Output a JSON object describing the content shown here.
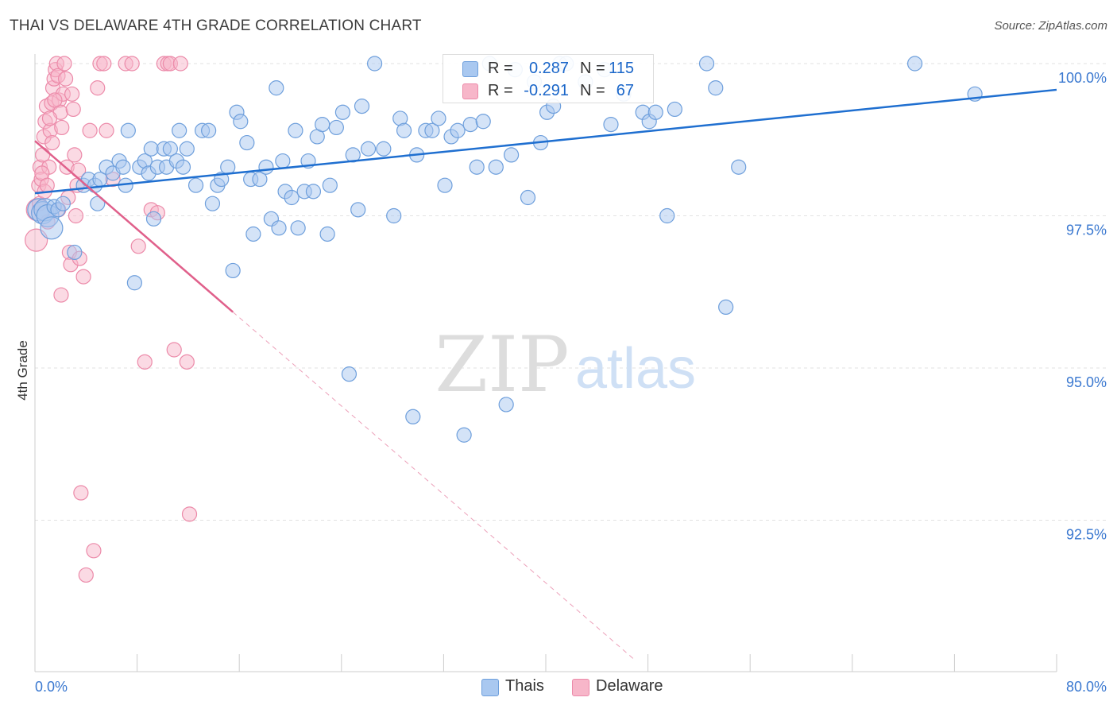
{
  "header": {
    "title": "THAI VS DELAWARE 4TH GRADE CORRELATION CHART",
    "source": "Source: ZipAtlas.com"
  },
  "watermark": {
    "zip": "ZIP",
    "atlas": "atlas"
  },
  "legend": {
    "rows": [
      {
        "r_label": "R =",
        "r_value": "0.287",
        "n_label": "N =",
        "n_value": "115"
      },
      {
        "r_label": "R =",
        "r_value": "-0.291",
        "n_label": "N =",
        "n_value": "67"
      }
    ],
    "bottom": [
      {
        "label": "Thais"
      },
      {
        "label": "Delaware"
      }
    ]
  },
  "colors": {
    "thais_fill": "#a9c8f0",
    "thais_stroke": "#6e9fdc",
    "thais_line": "#1f6fd0",
    "delaware_fill": "#f7b6c9",
    "delaware_stroke": "#ec8aa9",
    "delaware_line": "#e0608b",
    "axis_label": "#3a78d0"
  },
  "chart_data": {
    "type": "scatter",
    "title": "THAI VS DELAWARE 4TH GRADE CORRELATION CHART",
    "xlabel": "",
    "ylabel": "4th Grade",
    "xlim": [
      0,
      80
    ],
    "ylim": [
      90.2,
      100.6
    ],
    "x_tick_labels": {
      "left": "0.0%",
      "right": "80.0%"
    },
    "y_ticks": [
      {
        "value": 100.0,
        "label": "100.0%"
      },
      {
        "value": 97.5,
        "label": "97.5%"
      },
      {
        "value": 95.0,
        "label": "95.0%"
      },
      {
        "value": 92.5,
        "label": "92.5%"
      }
    ],
    "grid": true,
    "series": [
      {
        "name": "Thais",
        "R": 0.287,
        "N": 115,
        "trend": {
          "x": [
            0,
            80
          ],
          "y": [
            97.87,
            99.57
          ],
          "style": "solid"
        },
        "points": [
          [
            0.3,
            97.6
          ],
          [
            0.6,
            97.55
          ],
          [
            0.8,
            97.6
          ],
          [
            1.0,
            97.5
          ],
          [
            1.3,
            97.3
          ],
          [
            1.5,
            97.65
          ],
          [
            1.8,
            97.6
          ],
          [
            2.2,
            97.7
          ],
          [
            3.1,
            96.9
          ],
          [
            3.8,
            98.0
          ],
          [
            4.2,
            98.1
          ],
          [
            4.7,
            98.0
          ],
          [
            4.9,
            97.7
          ],
          [
            5.1,
            98.1
          ],
          [
            5.6,
            98.3
          ],
          [
            6.1,
            98.2
          ],
          [
            6.6,
            98.4
          ],
          [
            6.9,
            98.3
          ],
          [
            7.1,
            98.0
          ],
          [
            7.3,
            98.9
          ],
          [
            7.8,
            96.4
          ],
          [
            8.2,
            98.3
          ],
          [
            8.6,
            98.4
          ],
          [
            8.9,
            98.2
          ],
          [
            9.1,
            98.6
          ],
          [
            9.3,
            97.45
          ],
          [
            9.6,
            98.3
          ],
          [
            10.1,
            98.6
          ],
          [
            10.3,
            98.3
          ],
          [
            10.6,
            98.6
          ],
          [
            11.1,
            98.4
          ],
          [
            11.3,
            98.9
          ],
          [
            11.6,
            98.3
          ],
          [
            11.9,
            98.6
          ],
          [
            12.6,
            98.0
          ],
          [
            13.1,
            98.9
          ],
          [
            13.6,
            98.9
          ],
          [
            13.9,
            97.7
          ],
          [
            14.3,
            98.0
          ],
          [
            14.6,
            98.1
          ],
          [
            15.1,
            98.3
          ],
          [
            15.5,
            96.6
          ],
          [
            15.8,
            99.2
          ],
          [
            16.1,
            99.05
          ],
          [
            16.6,
            98.7
          ],
          [
            16.9,
            98.1
          ],
          [
            17.1,
            97.2
          ],
          [
            17.6,
            98.1
          ],
          [
            18.1,
            98.3
          ],
          [
            18.5,
            97.45
          ],
          [
            18.9,
            99.6
          ],
          [
            19.1,
            97.3
          ],
          [
            19.4,
            98.4
          ],
          [
            19.6,
            97.9
          ],
          [
            20.1,
            97.8
          ],
          [
            20.4,
            98.9
          ],
          [
            20.6,
            97.3
          ],
          [
            21.1,
            97.9
          ],
          [
            21.4,
            98.4
          ],
          [
            21.8,
            97.9
          ],
          [
            22.1,
            98.8
          ],
          [
            22.5,
            99.0
          ],
          [
            22.9,
            97.2
          ],
          [
            23.1,
            98.0
          ],
          [
            23.6,
            98.95
          ],
          [
            24.1,
            99.2
          ],
          [
            24.6,
            94.9
          ],
          [
            24.9,
            98.5
          ],
          [
            25.3,
            97.6
          ],
          [
            25.6,
            99.3
          ],
          [
            26.1,
            98.6
          ],
          [
            26.6,
            100.0
          ],
          [
            27.3,
            98.6
          ],
          [
            28.1,
            97.5
          ],
          [
            28.6,
            99.1
          ],
          [
            28.9,
            98.9
          ],
          [
            29.6,
            94.2
          ],
          [
            29.9,
            98.5
          ],
          [
            30.6,
            98.9
          ],
          [
            31.1,
            98.9
          ],
          [
            31.6,
            99.1
          ],
          [
            32.1,
            98.0
          ],
          [
            32.6,
            98.8
          ],
          [
            33.1,
            98.9
          ],
          [
            33.6,
            93.9
          ],
          [
            34.1,
            99.0
          ],
          [
            34.6,
            98.3
          ],
          [
            35.1,
            99.05
          ],
          [
            35.6,
            100.0
          ],
          [
            36.1,
            98.3
          ],
          [
            36.9,
            94.4
          ],
          [
            37.3,
            98.5
          ],
          [
            37.6,
            99.9
          ],
          [
            38.6,
            97.8
          ],
          [
            39.1,
            99.7
          ],
          [
            39.6,
            98.7
          ],
          [
            40.1,
            99.2
          ],
          [
            40.6,
            99.3
          ],
          [
            41.1,
            100.0
          ],
          [
            41.6,
            100.0
          ],
          [
            43.1,
            99.7
          ],
          [
            44.6,
            99.9
          ],
          [
            45.1,
            99.0
          ],
          [
            46.1,
            99.5
          ],
          [
            47.6,
            99.2
          ],
          [
            48.1,
            99.05
          ],
          [
            48.6,
            99.2
          ],
          [
            49.5,
            97.5
          ],
          [
            50.1,
            99.25
          ],
          [
            52.6,
            100.0
          ],
          [
            54.1,
            96.0
          ],
          [
            55.1,
            98.3
          ],
          [
            68.9,
            100.0
          ],
          [
            73.6,
            99.5
          ],
          [
            53.3,
            99.6
          ]
        ]
      },
      {
        "name": "Delaware",
        "R": -0.291,
        "N": 67,
        "trend": {
          "x": [
            0,
            15.5
          ],
          "y": [
            98.73,
            95.92
          ],
          "style": "solid"
        },
        "trend_extension": {
          "x": [
            15.5,
            47.0
          ],
          "y": [
            95.92,
            90.2
          ],
          "style": "dashed"
        },
        "points": [
          [
            0.1,
            97.1
          ],
          [
            0.2,
            97.6
          ],
          [
            0.3,
            98.0
          ],
          [
            0.4,
            98.3
          ],
          [
            0.5,
            98.1
          ],
          [
            0.6,
            98.5
          ],
          [
            0.7,
            98.8
          ],
          [
            0.8,
            99.05
          ],
          [
            0.9,
            99.3
          ],
          [
            1.0,
            97.4
          ],
          [
            1.1,
            98.3
          ],
          [
            1.2,
            98.9
          ],
          [
            1.3,
            99.35
          ],
          [
            1.4,
            99.6
          ],
          [
            1.5,
            99.75
          ],
          [
            1.6,
            99.9
          ],
          [
            1.7,
            100.0
          ],
          [
            1.8,
            99.8
          ],
          [
            1.9,
            99.4
          ],
          [
            2.0,
            99.2
          ],
          [
            2.1,
            98.95
          ],
          [
            2.2,
            99.5
          ],
          [
            2.3,
            100.0
          ],
          [
            2.4,
            99.75
          ],
          [
            2.5,
            98.3
          ],
          [
            2.6,
            97.8
          ],
          [
            2.7,
            96.9
          ],
          [
            2.8,
            96.7
          ],
          [
            2.9,
            99.5
          ],
          [
            3.0,
            99.25
          ],
          [
            3.1,
            98.5
          ],
          [
            3.2,
            97.5
          ],
          [
            3.3,
            98.0
          ],
          [
            3.4,
            98.25
          ],
          [
            3.5,
            96.8
          ],
          [
            3.6,
            92.95
          ],
          [
            3.8,
            96.5
          ],
          [
            4.0,
            91.6
          ],
          [
            4.3,
            98.9
          ],
          [
            4.6,
            92.0
          ],
          [
            4.9,
            99.6
          ],
          [
            5.1,
            100.0
          ],
          [
            5.4,
            100.0
          ],
          [
            5.6,
            98.9
          ],
          [
            6.1,
            98.1
          ],
          [
            7.1,
            100.0
          ],
          [
            7.6,
            100.0
          ],
          [
            8.1,
            97.0
          ],
          [
            8.6,
            95.1
          ],
          [
            9.1,
            97.6
          ],
          [
            9.6,
            97.55
          ],
          [
            10.1,
            100.0
          ],
          [
            10.4,
            100.0
          ],
          [
            10.6,
            100.0
          ],
          [
            10.9,
            95.3
          ],
          [
            11.4,
            100.0
          ],
          [
            11.9,
            95.1
          ],
          [
            12.1,
            92.6
          ],
          [
            0.35,
            97.7
          ],
          [
            0.55,
            98.2
          ],
          [
            0.75,
            97.9
          ],
          [
            0.95,
            98.0
          ],
          [
            1.15,
            99.1
          ],
          [
            1.35,
            98.7
          ],
          [
            1.55,
            99.4
          ],
          [
            2.05,
            96.2
          ],
          [
            1.85,
            97.6
          ]
        ]
      }
    ]
  }
}
